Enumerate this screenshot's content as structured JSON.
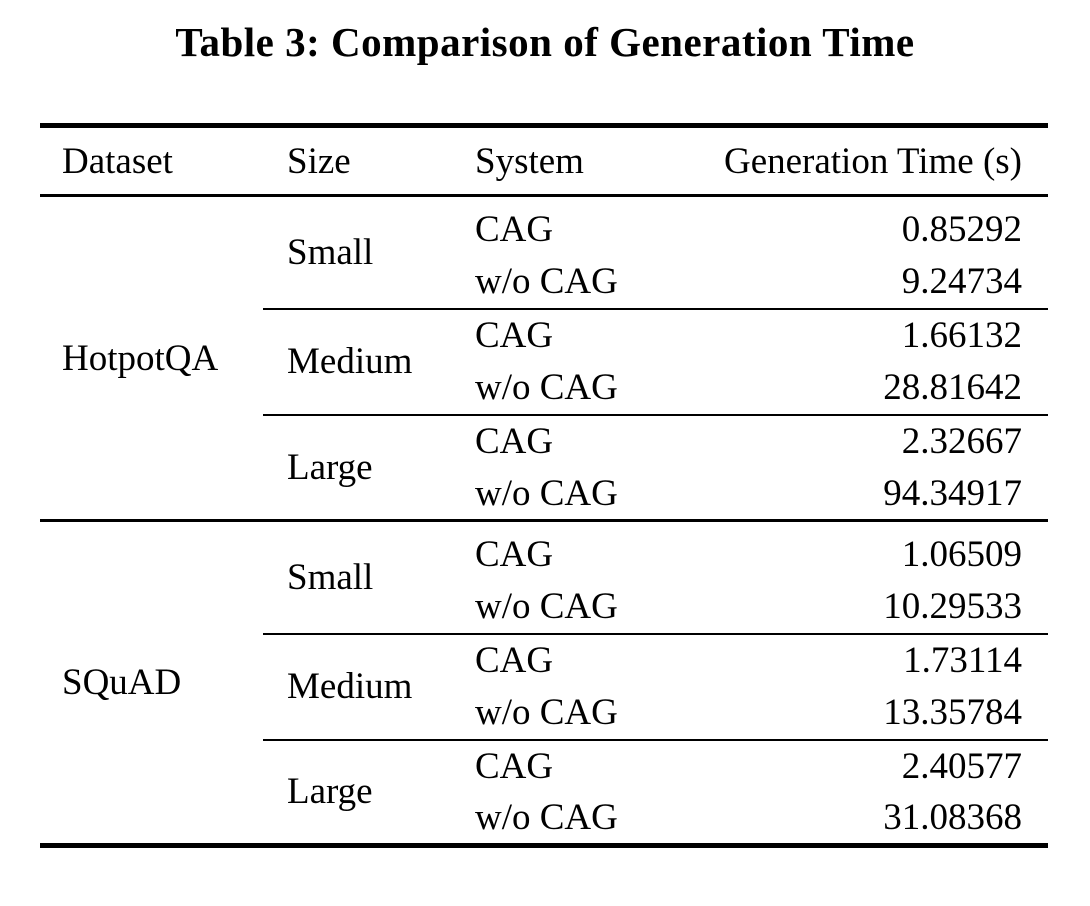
{
  "title": "Table 3: Comparison of Generation Time",
  "table": {
    "columns": {
      "dataset": "Dataset",
      "size": "Size",
      "system": "System",
      "time": "Generation Time (s)"
    },
    "datasets": [
      {
        "name": "HotpotQA",
        "groups": [
          {
            "size": "Small",
            "rows": [
              {
                "system": "CAG",
                "time": "0.85292"
              },
              {
                "system": "w/o CAG",
                "time": "9.24734"
              }
            ]
          },
          {
            "size": "Medium",
            "rows": [
              {
                "system": "CAG",
                "time": "1.66132"
              },
              {
                "system": "w/o CAG",
                "time": "28.81642"
              }
            ]
          },
          {
            "size": "Large",
            "rows": [
              {
                "system": "CAG",
                "time": "2.32667"
              },
              {
                "system": "w/o CAG",
                "time": "94.34917"
              }
            ]
          }
        ]
      },
      {
        "name": "SQuAD",
        "groups": [
          {
            "size": "Small",
            "rows": [
              {
                "system": "CAG",
                "time": "1.06509"
              },
              {
                "system": "w/o CAG",
                "time": "10.29533"
              }
            ]
          },
          {
            "size": "Medium",
            "rows": [
              {
                "system": "CAG",
                "time": "1.73114"
              },
              {
                "system": "w/o CAG",
                "time": "13.35784"
              }
            ]
          },
          {
            "size": "Large",
            "rows": [
              {
                "system": "CAG",
                "time": "2.40577"
              },
              {
                "system": "w/o CAG",
                "time": "31.08368"
              }
            ]
          }
        ]
      }
    ]
  },
  "chart_data": {
    "type": "table",
    "title": "Table 3: Comparison of Generation Time",
    "columns": [
      "Dataset",
      "Size",
      "System",
      "Generation Time (s)"
    ],
    "rows": [
      [
        "HotpotQA",
        "Small",
        "CAG",
        0.85292
      ],
      [
        "HotpotQA",
        "Small",
        "w/o CAG",
        9.24734
      ],
      [
        "HotpotQA",
        "Medium",
        "CAG",
        1.66132
      ],
      [
        "HotpotQA",
        "Medium",
        "w/o CAG",
        28.81642
      ],
      [
        "HotpotQA",
        "Large",
        "CAG",
        2.32667
      ],
      [
        "HotpotQA",
        "Large",
        "w/o CAG",
        94.34917
      ],
      [
        "SQuAD",
        "Small",
        "CAG",
        1.06509
      ],
      [
        "SQuAD",
        "Small",
        "w/o CAG",
        10.29533
      ],
      [
        "SQuAD",
        "Medium",
        "CAG",
        1.73114
      ],
      [
        "SQuAD",
        "Medium",
        "w/o CAG",
        13.35784
      ],
      [
        "SQuAD",
        "Large",
        "CAG",
        2.40577
      ],
      [
        "SQuAD",
        "Large",
        "w/o CAG",
        31.08368
      ]
    ]
  }
}
